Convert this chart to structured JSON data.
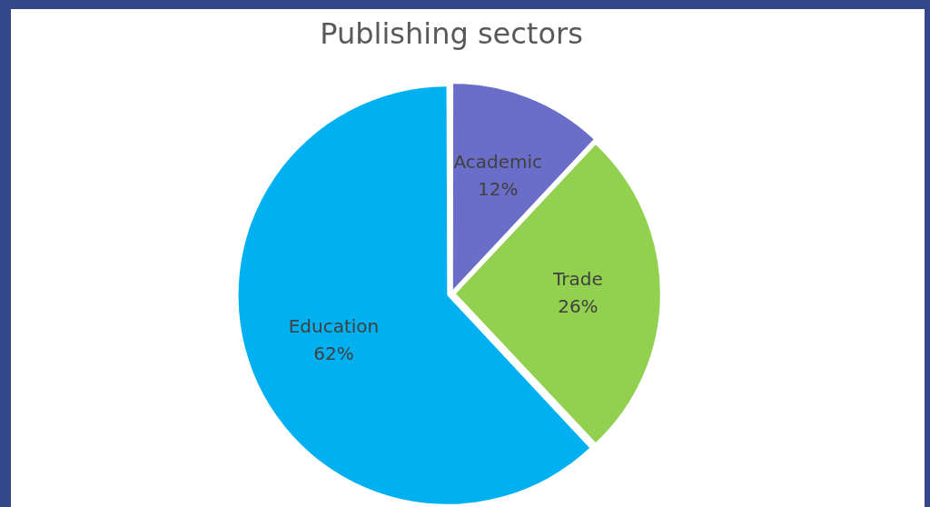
{
  "chart_data": {
    "type": "pie",
    "title": "Publishing sectors",
    "categories": [
      "Academic",
      "Trade",
      "Education"
    ],
    "values": [
      12,
      26,
      62
    ],
    "colors": [
      "#6b6ec8",
      "#92d050",
      "#00b0f0"
    ],
    "value_labels": [
      "12%",
      "26%",
      "62%"
    ],
    "legend": false
  }
}
